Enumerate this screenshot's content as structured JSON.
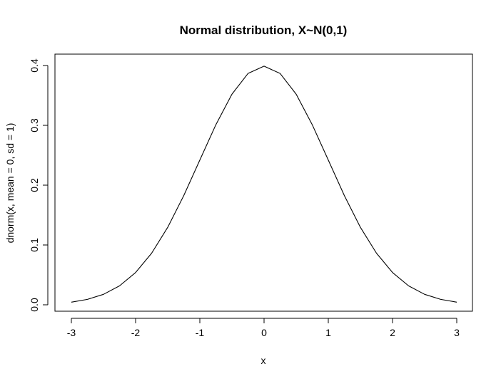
{
  "chart_data": {
    "type": "line",
    "title": "Normal distribution, X~N(0,1)",
    "xlabel": "x",
    "ylabel": "dnorm(x, mean = 0, sd = 1)",
    "xlim": [
      -3,
      3
    ],
    "ylim": [
      0,
      0.4
    ],
    "x_ticks": [
      -3,
      -2,
      -1,
      0,
      1,
      2,
      3
    ],
    "x_tick_labels": [
      "-3",
      "-2",
      "-1",
      "0",
      "1",
      "2",
      "3"
    ],
    "y_ticks": [
      0,
      0.1,
      0.2,
      0.3,
      0.4
    ],
    "y_tick_labels": [
      "0.0",
      "0.1",
      "0.2",
      "0.3",
      "0.4"
    ],
    "grid": false,
    "series": [
      {
        "color": "#000000",
        "x": [
          -3.0,
          -2.75,
          -2.5,
          -2.25,
          -2.0,
          -1.75,
          -1.5,
          -1.25,
          -1.0,
          -0.75,
          -0.5,
          -0.25,
          0.0,
          0.25,
          0.5,
          0.75,
          1.0,
          1.25,
          1.5,
          1.75,
          2.0,
          2.25,
          2.5,
          2.75,
          3.0
        ],
        "y": [
          0.0044,
          0.0091,
          0.0175,
          0.0317,
          0.054,
          0.0863,
          0.1295,
          0.1826,
          0.242,
          0.3011,
          0.3521,
          0.3867,
          0.3989,
          0.3867,
          0.3521,
          0.3011,
          0.242,
          0.1826,
          0.1295,
          0.0863,
          0.054,
          0.0317,
          0.0175,
          0.0091,
          0.0044
        ]
      }
    ]
  }
}
